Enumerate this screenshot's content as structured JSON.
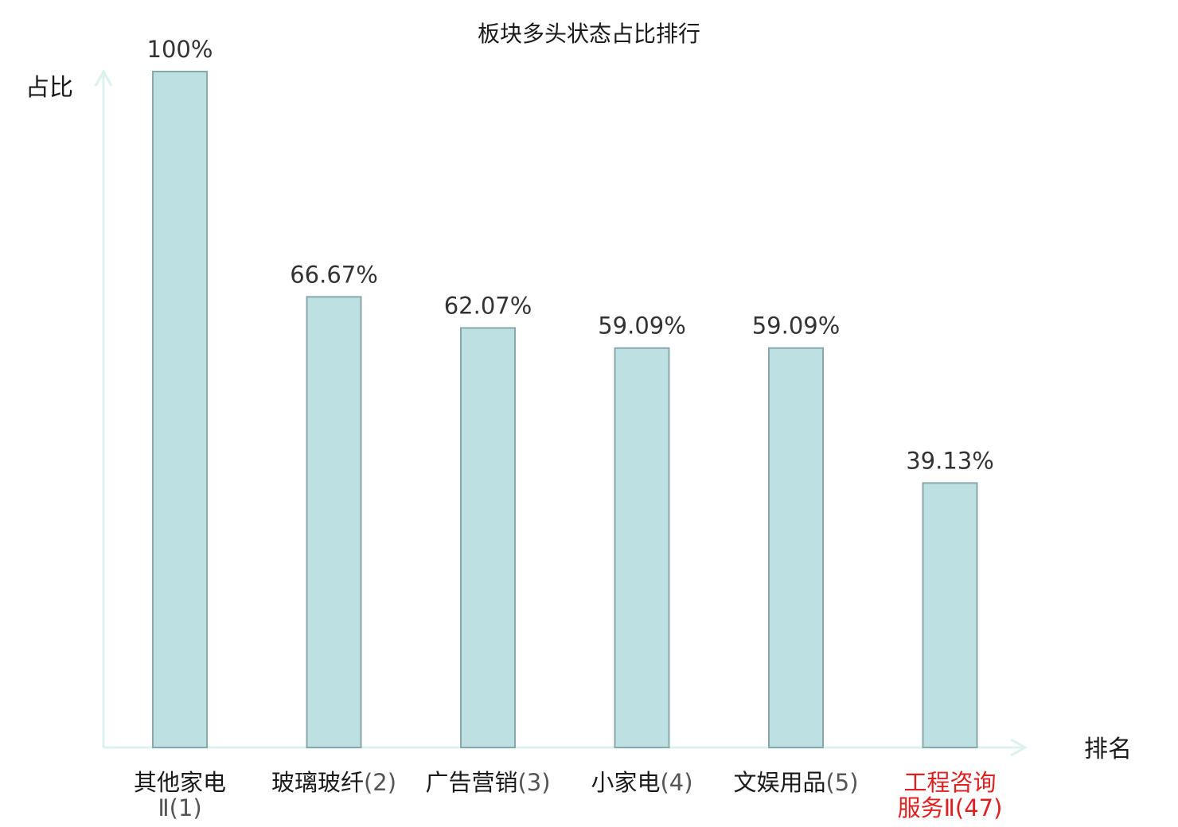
{
  "chart_data": {
    "type": "bar",
    "title": "板块多头状态占比排行",
    "ylabel": "占比",
    "xlabel": "排名",
    "ylim": [
      0,
      100
    ],
    "grid": false,
    "categories": [
      {
        "name_lines": [
          "其他家电"
        ],
        "rank_lines": [
          "Ⅱ(1)"
        ],
        "highlight": false
      },
      {
        "name_lines": [
          "玻璃玻纤"
        ],
        "rank_lines": [
          "(2)"
        ],
        "highlight": false
      },
      {
        "name_lines": [
          "广告营销"
        ],
        "rank_lines": [
          "(3)"
        ],
        "highlight": false
      },
      {
        "name_lines": [
          "小家电"
        ],
        "rank_lines": [
          "(4)"
        ],
        "highlight": false
      },
      {
        "name_lines": [
          "文娱用品"
        ],
        "rank_lines": [
          "(5)"
        ],
        "highlight": false
      },
      {
        "name_lines": [
          "工程咨询",
          "服务Ⅱ"
        ],
        "rank_lines": [
          "(47)"
        ],
        "highlight": true
      }
    ],
    "values": [
      100,
      66.67,
      62.07,
      59.09,
      59.09,
      39.13
    ],
    "value_labels": [
      "100%",
      "66.67%",
      "62.07%",
      "59.09%",
      "59.09%",
      "39.13%"
    ]
  },
  "colors": {
    "bar_fill": "#bde0e2",
    "bar_stroke": "#8aa8ab",
    "axis": "#ddf1ee",
    "text": "#1a1a1a",
    "rank_text": "#555555",
    "highlight": "#e02020"
  }
}
